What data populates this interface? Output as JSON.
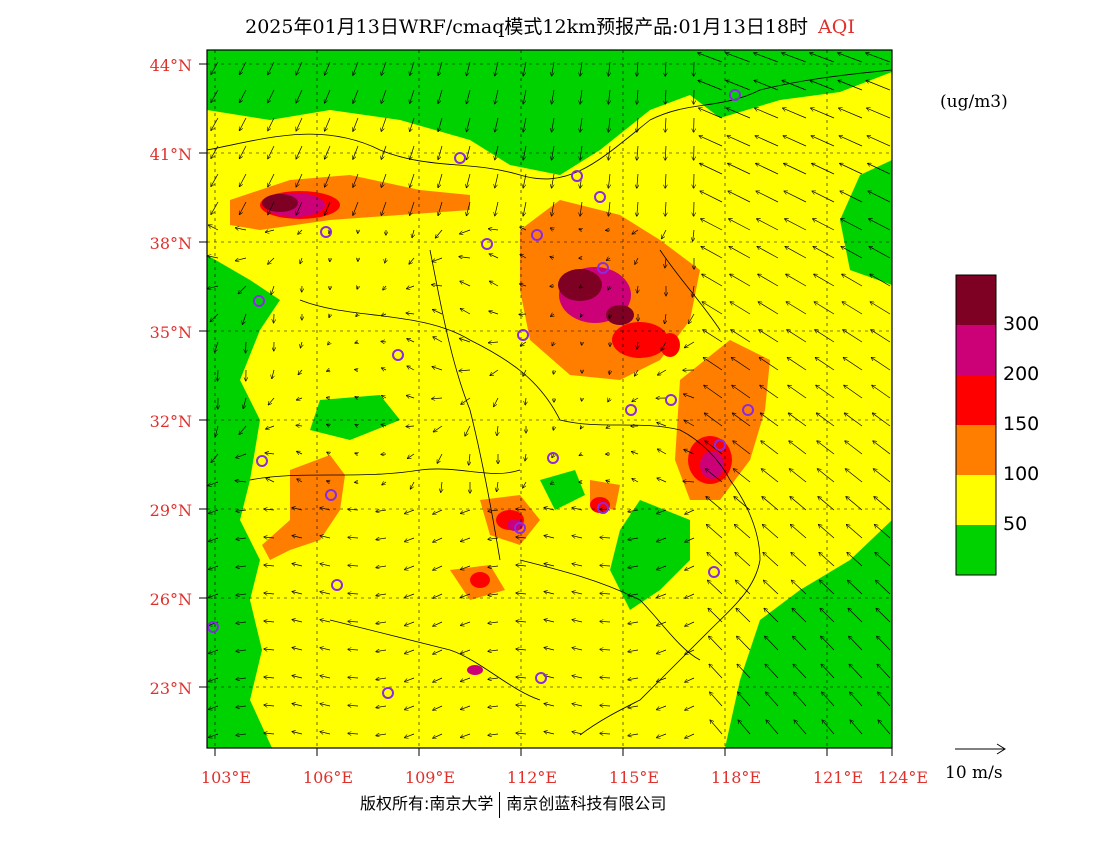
{
  "title": {
    "main": "2025年01月13日WRF/cmaq模式12km预报产品:01月13日18时",
    "variable": "AQI"
  },
  "map": {
    "lat_ticks": [
      "44°N",
      "41°N",
      "38°N",
      "35°N",
      "32°N",
      "29°N",
      "26°N",
      "23°N"
    ],
    "lon_ticks": [
      "103°E",
      "106°E",
      "109°E",
      "112°E",
      "115°E",
      "118°E",
      "121°E",
      "124°E"
    ],
    "extent": {
      "lon_min": 102.8,
      "lon_max": 124,
      "lat_min": 21.7,
      "lat_max": 44.4
    }
  },
  "colorbar": {
    "unit": "(ug/m3)",
    "levels": [
      {
        "color": "#00d200"
      },
      {
        "color": "#ffff00",
        "label": "50"
      },
      {
        "color": "#ff7e00",
        "label": "100"
      },
      {
        "color": "#ff0000",
        "label": "150"
      },
      {
        "color": "#cc0077",
        "label": "200"
      },
      {
        "color": "#7e0023",
        "label": "300"
      }
    ]
  },
  "wind_reference": {
    "label": "10 m/s"
  },
  "footer": {
    "left": "版权所有:南京大学",
    "right": "南京创蓝科技有限公司"
  },
  "colors": {
    "accent_red": "#e0302c",
    "green": "#00d200",
    "yellow": "#ffff00"
  }
}
